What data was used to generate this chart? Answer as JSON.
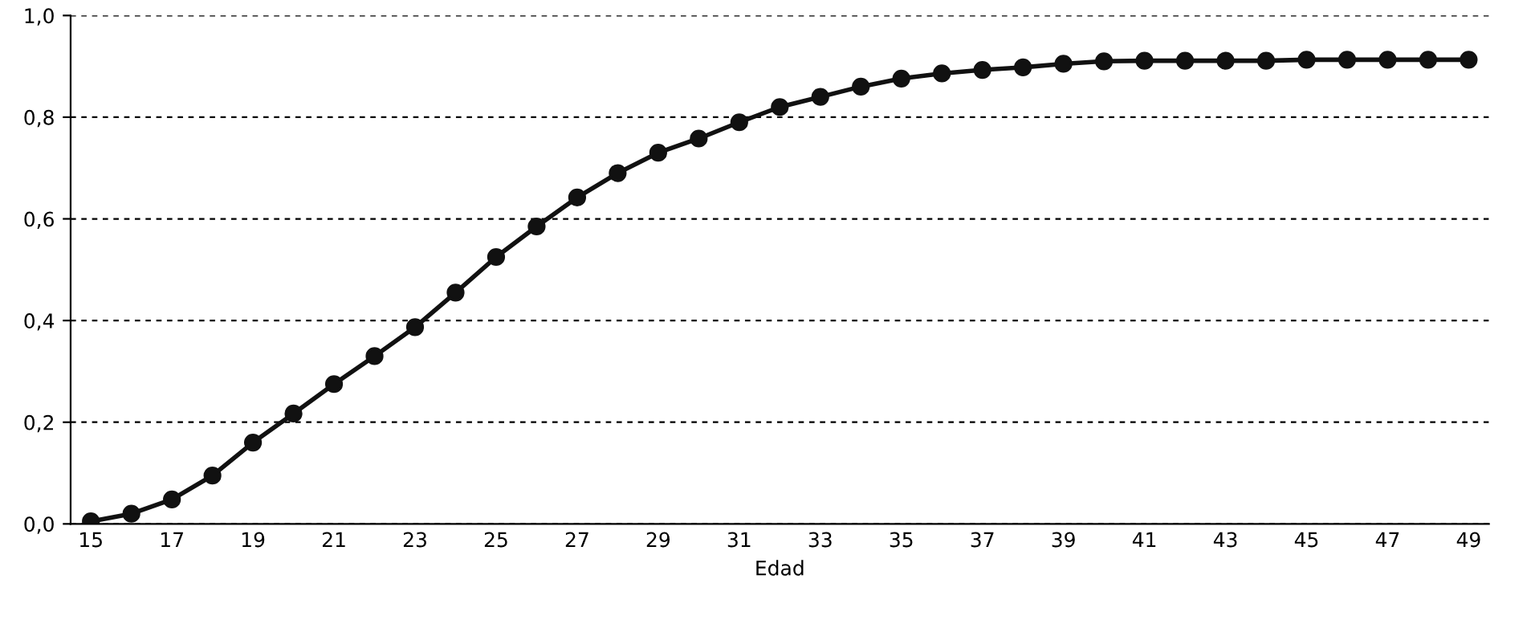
{
  "chart_data": {
    "type": "line",
    "xlabel": "Edad",
    "categories": [
      "15",
      null,
      "17",
      null,
      "19",
      null,
      "21",
      null,
      "23",
      null,
      "25",
      null,
      "27",
      null,
      "29",
      null,
      "31",
      null,
      "33",
      null,
      "35",
      null,
      "37",
      null,
      "39",
      null,
      "41",
      null,
      "43",
      null,
      "45",
      null,
      "47",
      null,
      "49"
    ],
    "series": [
      {
        "color": "#111111",
        "values": [
          0.005,
          0.02,
          0.048,
          0.095,
          0.16,
          0.217,
          0.275,
          0.33,
          0.387,
          0.455,
          0.525,
          0.585,
          0.642,
          0.69,
          0.73,
          0.758,
          0.79,
          0.82,
          0.84,
          0.86,
          0.876,
          0.886,
          0.893,
          0.898,
          0.905,
          0.91,
          0.911,
          0.911,
          0.911,
          0.911,
          0.913,
          0.913,
          0.913,
          0.913,
          0.913
        ]
      }
    ],
    "ylim": [
      0,
      1
    ],
    "yticks": [
      {
        "value": 0,
        "label": "0,0"
      },
      {
        "value": 0.2,
        "label": "0,2"
      },
      {
        "value": 0.4,
        "label": "0,4"
      },
      {
        "value": 0.6,
        "label": "0,6"
      },
      {
        "value": 0.8,
        "label": "0,8"
      },
      {
        "value": 1,
        "label": "1,0"
      }
    ],
    "grid": "y",
    "marker": "circle",
    "line_style": "solid",
    "legend": false
  }
}
